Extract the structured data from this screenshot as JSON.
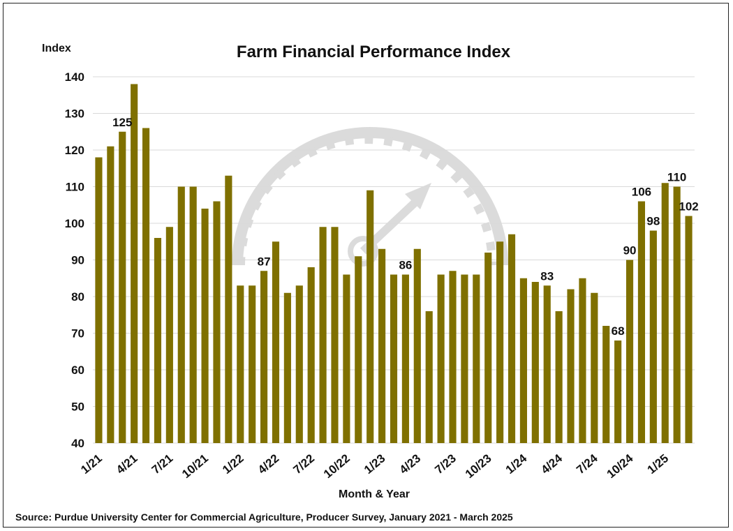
{
  "chart_data": {
    "type": "bar",
    "title": "Farm Financial Performance Index",
    "ylabel": "Index",
    "xlabel": "Month & Year",
    "source": "Source: Purdue University Center for Commercial Agriculture, Producer Survey, January 2021 - March 2025",
    "ylim": [
      40,
      140
    ],
    "yticks": [
      40,
      50,
      60,
      70,
      80,
      90,
      100,
      110,
      120,
      130,
      140
    ],
    "grid": true,
    "bar_color": "#7f7000",
    "categories": [
      "1/21",
      "2/21",
      "3/21",
      "4/21",
      "5/21",
      "6/21",
      "7/21",
      "8/21",
      "9/21",
      "10/21",
      "11/21",
      "12/21",
      "1/22",
      "2/22",
      "3/22",
      "4/22",
      "5/22",
      "6/22",
      "7/22",
      "8/22",
      "9/22",
      "10/22",
      "11/22",
      "12/22",
      "1/23",
      "2/23",
      "3/23",
      "4/23",
      "5/23",
      "6/23",
      "7/23",
      "8/23",
      "9/23",
      "10/23",
      "11/23",
      "12/23",
      "1/24",
      "2/24",
      "3/24",
      "4/24",
      "5/24",
      "6/24",
      "7/24",
      "8/24",
      "9/24",
      "10/24",
      "11/24",
      "12/24",
      "1/25",
      "2/25",
      "3/25"
    ],
    "tick_labels": [
      "1/21",
      "4/21",
      "7/21",
      "10/21",
      "1/22",
      "4/22",
      "7/22",
      "10/22",
      "1/23",
      "4/23",
      "7/23",
      "10/23",
      "1/24",
      "4/24",
      "7/24",
      "10/24",
      "1/25"
    ],
    "values": [
      118,
      121,
      125,
      138,
      126,
      96,
      99,
      110,
      110,
      104,
      106,
      113,
      83,
      83,
      87,
      95,
      81,
      83,
      88,
      99,
      99,
      86,
      91,
      109,
      93,
      86,
      86,
      93,
      76,
      86,
      87,
      86,
      86,
      92,
      95,
      97,
      85,
      84,
      83,
      76,
      82,
      85,
      81,
      72,
      68,
      90,
      106,
      98,
      111,
      110,
      102
    ],
    "data_labels": [
      {
        "category": "3/21",
        "text": "125"
      },
      {
        "category": "3/22",
        "text": "87"
      },
      {
        "category": "3/23",
        "text": "86"
      },
      {
        "category": "3/24",
        "text": "83"
      },
      {
        "category": "9/24",
        "text": "68"
      },
      {
        "category": "10/24",
        "text": "90"
      },
      {
        "category": "11/24",
        "text": "106"
      },
      {
        "category": "12/24",
        "text": "98"
      },
      {
        "category": "2/25",
        "text": "110"
      },
      {
        "category": "3/25",
        "text": "102"
      }
    ]
  }
}
